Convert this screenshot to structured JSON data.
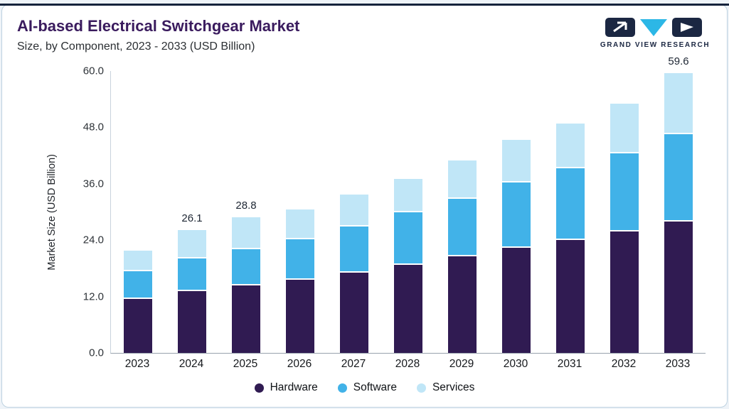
{
  "page": {
    "title": "AI-based Electrical Switchgear Market",
    "subtitle": "Size, by Component, 2023 - 2033 (USD Billion)",
    "brand": "GRAND VIEW RESEARCH"
  },
  "chart_data": {
    "type": "bar",
    "stacked": true,
    "title": "AI-based Electrical Switchgear Market Size, by Component, 2023 - 2033 (USD Billion)",
    "ylabel": "Market Size (USD Billion)",
    "ylim": [
      0,
      60
    ],
    "ytick_labels": [
      "0.0",
      "12.0",
      "24.0",
      "36.0",
      "48.0",
      "60.0"
    ],
    "grid": false,
    "legend_position": "bottom",
    "categories": [
      "2023",
      "2024",
      "2025",
      "2026",
      "2027",
      "2028",
      "2029",
      "2030",
      "2031",
      "2032",
      "2033"
    ],
    "series": [
      {
        "name": "Hardware",
        "color": "#301b52",
        "values": [
          11.5,
          13.2,
          14.3,
          15.5,
          17.1,
          18.8,
          20.5,
          22.3,
          24.0,
          25.9,
          27.9
        ]
      },
      {
        "name": "Software",
        "color": "#41b2e8",
        "values": [
          5.9,
          6.9,
          7.8,
          8.7,
          9.8,
          11.2,
          12.3,
          14.0,
          15.3,
          16.6,
          18.6
        ]
      },
      {
        "name": "Services",
        "color": "#c0e6f7",
        "values": [
          4.3,
          6.0,
          6.7,
          6.3,
          6.8,
          7.0,
          8.2,
          9.1,
          9.5,
          10.5,
          13.1
        ]
      }
    ],
    "totals": [
      21.7,
      26.1,
      28.8,
      30.5,
      33.7,
      37.0,
      41.0,
      45.4,
      48.8,
      53.0,
      59.6
    ],
    "annotations": [
      {
        "category": "2024",
        "label": "26.1"
      },
      {
        "category": "2025",
        "label": "28.8"
      },
      {
        "category": "2033",
        "label": "59.6"
      }
    ],
    "colors": {
      "title": "#3a1b5e",
      "accent_line": "#15233c",
      "axis_text": "#2e3338",
      "logo_dark": "#1b2742",
      "logo_cyan": "#2cb7e6"
    }
  }
}
